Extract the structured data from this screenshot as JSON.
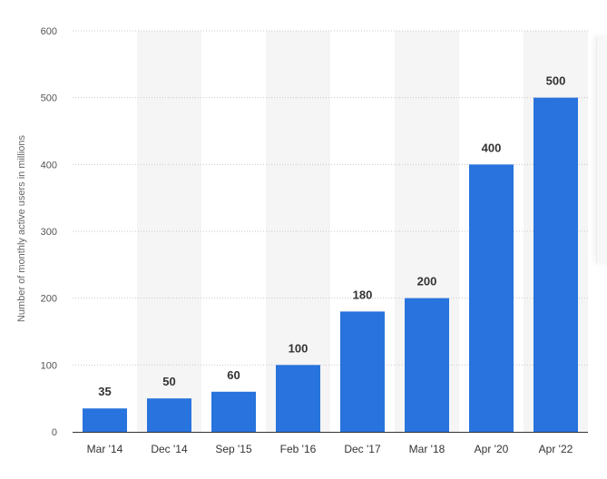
{
  "chart_data": {
    "type": "bar",
    "title": "",
    "xlabel": "",
    "ylabel": "Number of monthly active users in millions",
    "categories": [
      "Mar '14",
      "Dec '14",
      "Sep '15",
      "Feb '16",
      "Dec '17",
      "Mar '18",
      "Apr '20",
      "Apr '22"
    ],
    "values": [
      35,
      50,
      60,
      100,
      180,
      200,
      400,
      500
    ],
    "data_labels": [
      "35",
      "50",
      "60",
      "100",
      "180",
      "200",
      "400",
      "500"
    ],
    "yticks": [
      "0",
      "100",
      "200",
      "300",
      "400",
      "500",
      "600"
    ],
    "ylim": [
      0,
      600
    ],
    "grid": true,
    "legend": "none",
    "colors": {
      "bar": "#2873dd",
      "band": "#f5f5f5",
      "grid": "#c8c8c8",
      "axis": "#333333",
      "text": "#333333",
      "tick": "#555555"
    }
  }
}
